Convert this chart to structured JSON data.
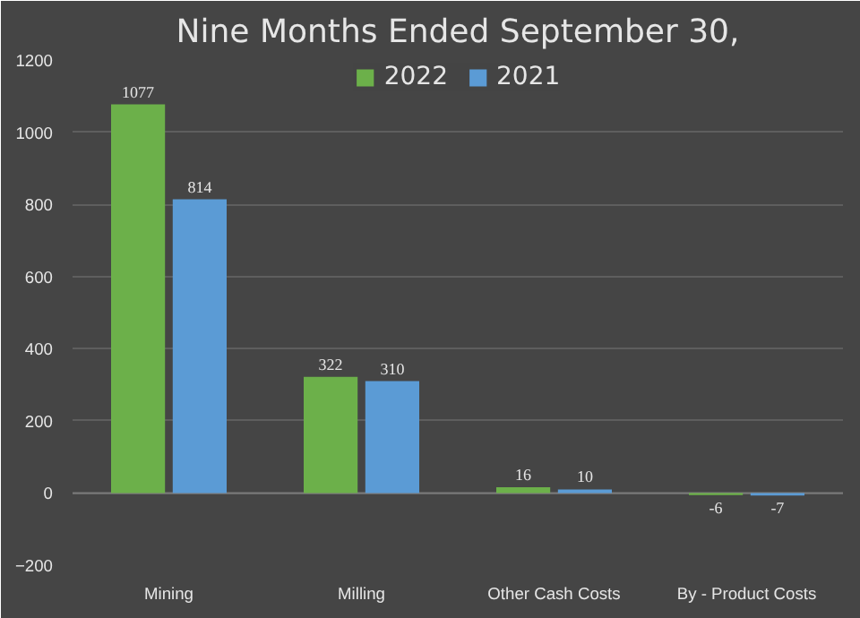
{
  "chart_data": {
    "type": "bar",
    "title": "Nine Months Ended September 30,",
    "categories": [
      "Mining",
      "Milling",
      "Other Cash Costs",
      "By - Product Costs"
    ],
    "series": [
      {
        "name": "2022",
        "color": "#6cb04a",
        "values": [
          1077,
          322,
          16,
          -6
        ]
      },
      {
        "name": "2021",
        "color": "#5b9bd5",
        "values": [
          814,
          310,
          10,
          -7
        ]
      }
    ],
    "ylim": [
      -200,
      1200
    ],
    "yticks": [
      -200,
      0,
      200,
      400,
      600,
      800,
      1000,
      1200
    ],
    "grid": "y",
    "legend": "top",
    "data_labels": true
  }
}
